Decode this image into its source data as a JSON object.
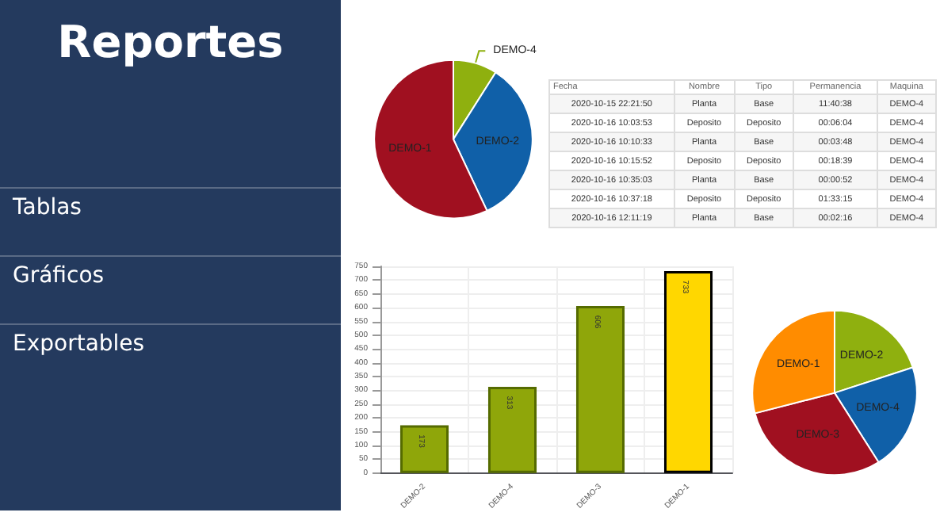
{
  "chart_data": [
    {
      "type": "other",
      "title": "Reportes",
      "annotations": [
        "Tablas",
        "Gráficos",
        "Exportables"
      ]
    },
    {
      "type": "pie",
      "categories": [
        "DEMO-4",
        "DEMO-2",
        "DEMO-1"
      ],
      "values": [
        9,
        34,
        57
      ],
      "colors": [
        "#8fb00f",
        "#1060a8",
        "#a01020"
      ]
    },
    {
      "type": "other",
      "categories": [
        "Fecha",
        "Nombre",
        "Tipo",
        "Permanencia",
        "Maquina"
      ],
      "annotations": [
        "2020-10-15 22:21:50",
        "Planta",
        "Base",
        "11:40:38",
        "DEMO-4",
        "2020-10-16 10:03:53",
        "Deposito",
        "Deposito",
        "00:06:04",
        "DEMO-4",
        "2020-10-16 10:10:33",
        "Planta",
        "Base",
        "00:03:48",
        "DEMO-4",
        "2020-10-16 10:15:52",
        "Deposito",
        "Deposito",
        "00:18:39",
        "DEMO-4",
        "2020-10-16 10:35:03",
        "Planta",
        "Base",
        "00:00:52",
        "DEMO-4",
        "2020-10-16 10:37:18",
        "Deposito",
        "Deposito",
        "01:33:15",
        "DEMO-4",
        "2020-10-16 12:11:19",
        "Planta",
        "Base",
        "00:02:16",
        "DEMO-4"
      ]
    },
    {
      "type": "bar",
      "categories": [
        "DEMO-2",
        "DEMO-4",
        "DEMO-3",
        "DEMO-1"
      ],
      "values": [
        173,
        313,
        606,
        733
      ],
      "colors": [
        "#8fa60a",
        "#8fa60a",
        "#8fa60a",
        "#ffd700"
      ],
      "ylim": [
        0,
        750
      ],
      "yticks": [
        0,
        50,
        100,
        150,
        200,
        250,
        300,
        350,
        400,
        450,
        500,
        550,
        600,
        650,
        700,
        750
      ],
      "grid": true,
      "data_labels": true
    },
    {
      "type": "pie",
      "categories": [
        "DEMO-2",
        "DEMO-4",
        "DEMO-3",
        "DEMO-1"
      ],
      "values": [
        20,
        21,
        30,
        29
      ],
      "colors": [
        "#8fb00f",
        "#1060a8",
        "#a01020",
        "#ff8c00"
      ]
    }
  ]
}
